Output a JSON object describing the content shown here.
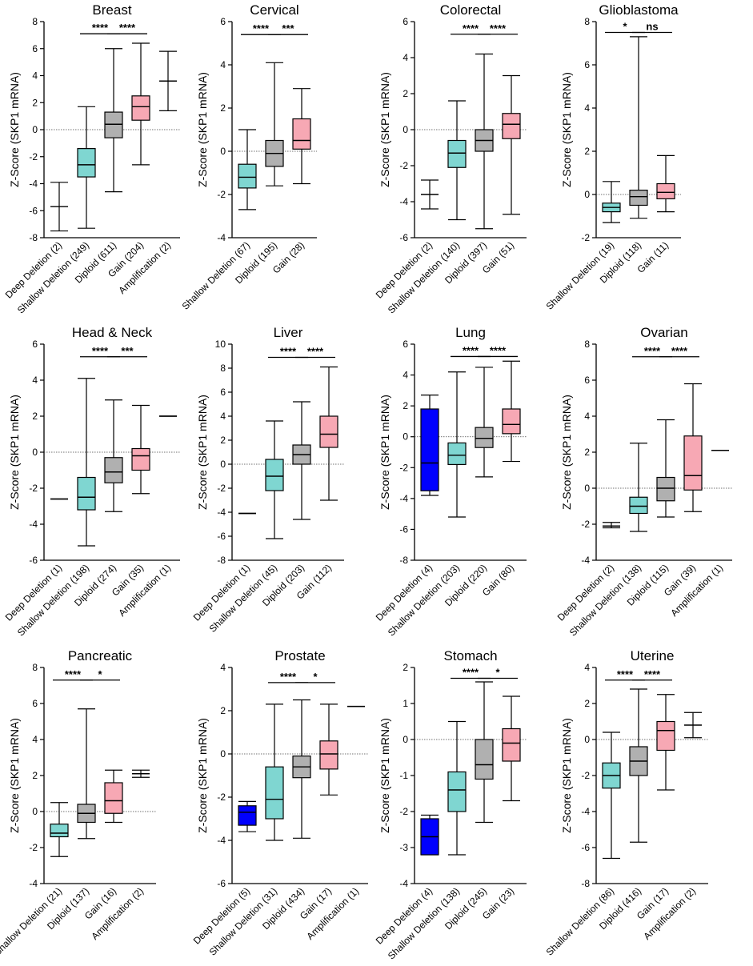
{
  "figure": {
    "ylabel": "Z-Score (SKP1 mRNA)"
  },
  "colors": {
    "deep_deletion": "#0000ff",
    "shallow_deletion": "#7fd6d1",
    "diploid": "#b0b0b0",
    "gain": "#f7a8b4",
    "amplification": "#ffffff",
    "axis": "#000000"
  },
  "chart_data": [
    {
      "type": "box",
      "title": "Breast",
      "ylabel": "Z-Score (SKP1 mRNA)",
      "ylim": [
        -8,
        8
      ],
      "yticks": [
        -8,
        -6,
        -4,
        -2,
        0,
        2,
        4,
        6,
        8
      ],
      "categories": [
        "Deep Deletion (2)",
        "Shallow Deletion (249)",
        "Diploid (611)",
        "Gain (204)",
        "Amplification (2)"
      ],
      "colorKeys": [
        "amplification",
        "shallow_deletion",
        "diploid",
        "gain",
        "amplification"
      ],
      "boxes": [
        {
          "min": -7.5,
          "q1": null,
          "median": -5.7,
          "q3": null,
          "max": -3.9
        },
        {
          "min": -7.3,
          "q1": -3.5,
          "median": -2.6,
          "q3": -1.4,
          "max": 1.7
        },
        {
          "min": -4.6,
          "q1": -0.6,
          "median": 0.4,
          "q3": 1.3,
          "max": 6.0
        },
        {
          "min": -2.6,
          "q1": 0.7,
          "median": 1.7,
          "q3": 2.5,
          "max": 6.4
        },
        {
          "min": 1.4,
          "q1": null,
          "median": 3.6,
          "q3": null,
          "max": 5.8
        }
      ],
      "significance": [
        {
          "from": 1,
          "to": 2,
          "label": "****",
          "y": 7.1
        },
        {
          "from": 2,
          "to": 3,
          "label": "****",
          "y": 7.1
        }
      ]
    },
    {
      "type": "box",
      "title": "Cervical",
      "ylabel": "Z-Score (SKP1 mRNA)",
      "ylim": [
        -4,
        6
      ],
      "yticks": [
        -4,
        -2,
        0,
        2,
        4,
        6
      ],
      "categories": [
        "Shallow Deletion (67)",
        "Diploid (195)",
        "Gain (28)"
      ],
      "colorKeys": [
        "shallow_deletion",
        "diploid",
        "gain"
      ],
      "boxes": [
        {
          "min": -2.7,
          "q1": -1.7,
          "median": -1.2,
          "q3": -0.6,
          "max": 1.0
        },
        {
          "min": -1.6,
          "q1": -0.7,
          "median": -0.1,
          "q3": 0.5,
          "max": 4.1
        },
        {
          "min": -1.5,
          "q1": 0.1,
          "median": 0.5,
          "q3": 1.5,
          "max": 2.9
        }
      ],
      "significance": [
        {
          "from": 0,
          "to": 1,
          "label": "****",
          "y": 5.4
        },
        {
          "from": 1,
          "to": 2,
          "label": "***",
          "y": 5.4
        }
      ]
    },
    {
      "type": "box",
      "title": "Colorectal",
      "ylabel": "Z-Score (SKP1 mRNA)",
      "ylim": [
        -6,
        6
      ],
      "yticks": [
        -6,
        -4,
        -2,
        0,
        2,
        4,
        6
      ],
      "categories": [
        "Deep Deletion (2)",
        "Shallow Deletion (140)",
        "Diploid (397)",
        "Gain (51)"
      ],
      "colorKeys": [
        "amplification",
        "shallow_deletion",
        "diploid",
        "gain"
      ],
      "boxes": [
        {
          "min": -4.4,
          "q1": null,
          "median": -3.6,
          "q3": null,
          "max": -2.8
        },
        {
          "min": -5.0,
          "q1": -2.1,
          "median": -1.3,
          "q3": -0.6,
          "max": 1.6
        },
        {
          "min": -5.5,
          "q1": -1.2,
          "median": -0.6,
          "q3": 0.0,
          "max": 4.2
        },
        {
          "min": -4.7,
          "q1": -0.5,
          "median": 0.3,
          "q3": 0.9,
          "max": 3.0
        }
      ],
      "significance": [
        {
          "from": 1,
          "to": 2,
          "label": "****",
          "y": 5.3
        },
        {
          "from": 2,
          "to": 3,
          "label": "****",
          "y": 5.3
        }
      ]
    },
    {
      "type": "box",
      "title": "Glioblastoma",
      "ylabel": "Z-Score (SKP1 mRNA)",
      "ylim": [
        -2,
        8
      ],
      "yticks": [
        -2,
        0,
        2,
        4,
        6,
        8
      ],
      "categories": [
        "Shallow Deletion (19)",
        "Diploid (118)",
        "Gain (11)"
      ],
      "colorKeys": [
        "shallow_deletion",
        "diploid",
        "gain"
      ],
      "boxes": [
        {
          "min": -1.3,
          "q1": -0.8,
          "median": -0.6,
          "q3": -0.4,
          "max": 0.6
        },
        {
          "min": -1.1,
          "q1": -0.5,
          "median": -0.1,
          "q3": 0.2,
          "max": 7.3
        },
        {
          "min": -0.8,
          "q1": -0.2,
          "median": 0.1,
          "q3": 0.5,
          "max": 1.8
        }
      ],
      "significance": [
        {
          "from": 0,
          "to": 1,
          "label": "*",
          "y": 7.5
        },
        {
          "from": 1,
          "to": 2,
          "label": "ns",
          "y": 7.5
        }
      ]
    },
    {
      "type": "box",
      "title": "Head & Neck",
      "ylabel": "Z-Score (SKP1 mRNA)",
      "ylim": [
        -6,
        6
      ],
      "yticks": [
        -6,
        -4,
        -2,
        0,
        2,
        4,
        6
      ],
      "categories": [
        "Deep Deletion (1)",
        "Shallow Deletion (198)",
        "Diploid (274)",
        "Gain (35)",
        "Amplification (1)"
      ],
      "colorKeys": [
        "amplification",
        "shallow_deletion",
        "diploid",
        "gain",
        "amplification"
      ],
      "boxes": [
        {
          "min": -2.6,
          "q1": null,
          "median": -2.6,
          "q3": null,
          "max": -2.6
        },
        {
          "min": -5.2,
          "q1": -3.2,
          "median": -2.5,
          "q3": -1.4,
          "max": 4.1
        },
        {
          "min": -3.3,
          "q1": -1.7,
          "median": -1.1,
          "q3": -0.3,
          "max": 2.9
        },
        {
          "min": -2.3,
          "q1": -1.0,
          "median": -0.2,
          "q3": 0.2,
          "max": 2.6
        },
        {
          "min": 2.0,
          "q1": null,
          "median": 2.0,
          "q3": null,
          "max": 2.0
        }
      ],
      "significance": [
        {
          "from": 1,
          "to": 2,
          "label": "****",
          "y": 5.3
        },
        {
          "from": 2,
          "to": 3,
          "label": "***",
          "y": 5.3
        }
      ]
    },
    {
      "type": "box",
      "title": "Liver",
      "ylabel": "Z-Score (SKP1 mRNA)",
      "ylim": [
        -8,
        10
      ],
      "yticks": [
        -8,
        -6,
        -4,
        -2,
        0,
        2,
        4,
        6,
        8,
        10
      ],
      "categories": [
        "Deep Deletion (1)",
        "Shallow Deletion (45)",
        "Diploid (203)",
        "Gain (112)"
      ],
      "colorKeys": [
        "amplification",
        "shallow_deletion",
        "diploid",
        "gain"
      ],
      "boxes": [
        {
          "min": -4.1,
          "q1": null,
          "median": -4.1,
          "q3": null,
          "max": -4.1
        },
        {
          "min": -6.2,
          "q1": -2.2,
          "median": -1.0,
          "q3": 0.4,
          "max": 3.6
        },
        {
          "min": -4.6,
          "q1": 0.0,
          "median": 0.8,
          "q3": 1.6,
          "max": 5.2
        },
        {
          "min": -3.0,
          "q1": 1.4,
          "median": 2.5,
          "q3": 4.0,
          "max": 8.1
        }
      ],
      "significance": [
        {
          "from": 1,
          "to": 2,
          "label": "****",
          "y": 8.9
        },
        {
          "from": 2,
          "to": 3,
          "label": "****",
          "y": 8.9
        }
      ]
    },
    {
      "type": "box",
      "title": "Lung",
      "ylabel": "Z-Score (SKP1 mRNA)",
      "ylim": [
        -8,
        6
      ],
      "yticks": [
        -8,
        -6,
        -4,
        -2,
        0,
        2,
        4,
        6
      ],
      "categories": [
        "Deep Deletion (4)",
        "Shallow Deletion (203)",
        "Diploid (220)",
        "Gain (80)"
      ],
      "colorKeys": [
        "deep_deletion",
        "shallow_deletion",
        "diploid",
        "gain"
      ],
      "boxes": [
        {
          "min": -3.8,
          "q1": -3.5,
          "median": -1.7,
          "q3": 1.8,
          "max": 2.7
        },
        {
          "min": -5.2,
          "q1": -1.8,
          "median": -1.2,
          "q3": -0.4,
          "max": 4.2
        },
        {
          "min": -2.6,
          "q1": -0.7,
          "median": -0.1,
          "q3": 0.6,
          "max": 4.5
        },
        {
          "min": -1.6,
          "q1": 0.2,
          "median": 0.8,
          "q3": 1.8,
          "max": 4.9
        }
      ],
      "significance": [
        {
          "from": 1,
          "to": 2,
          "label": "****",
          "y": 5.2
        },
        {
          "from": 2,
          "to": 3,
          "label": "****",
          "y": 5.2
        }
      ]
    },
    {
      "type": "box",
      "title": "Ovarian",
      "ylabel": "Z-Score (SKP1 mRNA)",
      "ylim": [
        -4,
        8
      ],
      "yticks": [
        -4,
        -2,
        0,
        2,
        4,
        6,
        8
      ],
      "categories": [
        "Deep Deletion (2)",
        "Shallow Deletion (138)",
        "Diploid (115)",
        "Gain (39)",
        "Amplification (1)"
      ],
      "colorKeys": [
        "amplification",
        "shallow_deletion",
        "diploid",
        "gain",
        "amplification"
      ],
      "boxes": [
        {
          "min": -2.2,
          "q1": null,
          "median": -2.1,
          "q3": null,
          "max": -1.9
        },
        {
          "min": -2.4,
          "q1": -1.4,
          "median": -1.0,
          "q3": -0.5,
          "max": 2.5
        },
        {
          "min": -1.6,
          "q1": -0.7,
          "median": 0.0,
          "q3": 0.6,
          "max": 3.8
        },
        {
          "min": -1.3,
          "q1": -0.1,
          "median": 0.7,
          "q3": 2.9,
          "max": 5.8
        },
        {
          "min": 2.1,
          "q1": null,
          "median": 2.1,
          "q3": null,
          "max": 2.1
        }
      ],
      "significance": [
        {
          "from": 1,
          "to": 2,
          "label": "****",
          "y": 7.3
        },
        {
          "from": 2,
          "to": 3,
          "label": "****",
          "y": 7.3
        }
      ]
    },
    {
      "type": "box",
      "title": "Pancreatic",
      "ylabel": "Z-Score (SKP1 mRNA)",
      "ylim": [
        -4,
        8
      ],
      "yticks": [
        -4,
        -2,
        0,
        2,
        4,
        6,
        8
      ],
      "categories": [
        "Shallow Deletion (21)",
        "Diploid (137)",
        "Gain (16)",
        "Amplification (2)"
      ],
      "colorKeys": [
        "shallow_deletion",
        "diploid",
        "gain",
        "amplification"
      ],
      "boxes": [
        {
          "min": -2.5,
          "q1": -1.4,
          "median": -1.2,
          "q3": -0.7,
          "max": 0.5
        },
        {
          "min": -1.5,
          "q1": -0.6,
          "median": -0.1,
          "q3": 0.4,
          "max": 5.7
        },
        {
          "min": -0.6,
          "q1": -0.1,
          "median": 0.6,
          "q3": 1.6,
          "max": 2.3
        },
        {
          "min": 1.9,
          "q1": null,
          "median": 2.1,
          "q3": null,
          "max": 2.3
        }
      ],
      "significance": [
        {
          "from": 0,
          "to": 1,
          "label": "****",
          "y": 7.3
        },
        {
          "from": 1,
          "to": 2,
          "label": "*",
          "y": 7.3
        }
      ]
    },
    {
      "type": "box",
      "title": "Prostate",
      "ylabel": "Z-Score (SKP1 mRNA)",
      "ylim": [
        -6,
        4
      ],
      "yticks": [
        -6,
        -4,
        -2,
        0,
        2,
        4
      ],
      "categories": [
        "Deep Deletion (5)",
        "Shallow Deletion (31)",
        "Diploid (434)",
        "Gain (17)",
        "Amplification (1)"
      ],
      "colorKeys": [
        "deep_deletion",
        "shallow_deletion",
        "diploid",
        "gain",
        "amplification"
      ],
      "boxes": [
        {
          "min": -3.6,
          "q1": -3.3,
          "median": -2.7,
          "q3": -2.4,
          "max": -2.2
        },
        {
          "min": -4.0,
          "q1": -3.0,
          "median": -2.1,
          "q3": -0.6,
          "max": 2.3
        },
        {
          "min": -3.9,
          "q1": -1.1,
          "median": -0.6,
          "q3": -0.1,
          "max": 2.5
        },
        {
          "min": -1.9,
          "q1": -0.7,
          "median": 0.0,
          "q3": 0.6,
          "max": 2.3
        },
        {
          "min": 2.2,
          "q1": null,
          "median": 2.2,
          "q3": null,
          "max": 2.2
        }
      ],
      "significance": [
        {
          "from": 1,
          "to": 2,
          "label": "****",
          "y": 3.3
        },
        {
          "from": 2,
          "to": 3,
          "label": "*",
          "y": 3.3
        }
      ]
    },
    {
      "type": "box",
      "title": "Stomach",
      "ylabel": "Z-Score (SKP1 mRNA)",
      "ylim": [
        -4,
        2
      ],
      "yticks": [
        -4,
        -3,
        -2,
        -1,
        0,
        1,
        2
      ],
      "categories": [
        "Deep Deletion (4)",
        "Shallow Deletion (138)",
        "Diploid (245)",
        "Gain (23)"
      ],
      "colorKeys": [
        "deep_deletion",
        "shallow_deletion",
        "diploid",
        "gain"
      ],
      "boxes": [
        {
          "min": -3.2,
          "q1": -3.2,
          "median": -2.7,
          "q3": -2.2,
          "max": -2.1
        },
        {
          "min": -3.2,
          "q1": -2.0,
          "median": -1.4,
          "q3": -0.9,
          "max": 0.5
        },
        {
          "min": -2.3,
          "q1": -1.1,
          "median": -0.7,
          "q3": 0.0,
          "max": 1.6
        },
        {
          "min": -1.7,
          "q1": -0.6,
          "median": -0.1,
          "q3": 0.3,
          "max": 1.2
        }
      ],
      "significance": [
        {
          "from": 1,
          "to": 2,
          "label": "****",
          "y": 1.7
        },
        {
          "from": 2,
          "to": 3,
          "label": "*",
          "y": 1.7
        }
      ]
    },
    {
      "type": "box",
      "title": "Uterine",
      "ylabel": "Z-Score (SKP1 mRNA)",
      "ylim": [
        -8,
        4
      ],
      "yticks": [
        -8,
        -6,
        -4,
        -2,
        0,
        2,
        4
      ],
      "categories": [
        "Shallow Deletion (86)",
        "Diploid (416)",
        "Gain (17)",
        "Amplification (2)"
      ],
      "colorKeys": [
        "shallow_deletion",
        "diploid",
        "gain",
        "amplification"
      ],
      "boxes": [
        {
          "min": -6.6,
          "q1": -2.7,
          "median": -2.0,
          "q3": -1.3,
          "max": 0.4
        },
        {
          "min": -5.7,
          "q1": -2.0,
          "median": -1.2,
          "q3": -0.4,
          "max": 2.8
        },
        {
          "min": -2.8,
          "q1": -0.6,
          "median": 0.5,
          "q3": 1.0,
          "max": 2.5
        },
        {
          "min": 0.1,
          "q1": null,
          "median": 0.8,
          "q3": null,
          "max": 1.5
        }
      ],
      "significance": [
        {
          "from": 0,
          "to": 1,
          "label": "****",
          "y": 3.3
        },
        {
          "from": 1,
          "to": 2,
          "label": "****",
          "y": 3.3
        }
      ]
    }
  ]
}
